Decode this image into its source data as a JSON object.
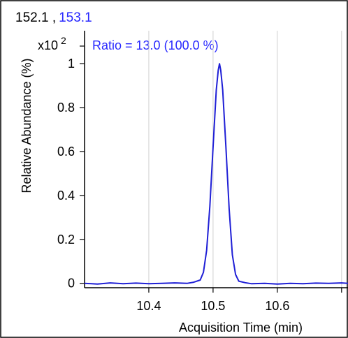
{
  "header": {
    "ion_primary": "152.1",
    "ion_separator": " ,",
    "ion_secondary": "153.1"
  },
  "annotation": {
    "ratio_text": "Ratio = 13.0 (100.0 %)"
  },
  "colors": {
    "trace": "#1f1fd6",
    "grid": "#cfcfcf",
    "axis": "#000000",
    "text": "#000000",
    "accent_text": "#2828ff"
  },
  "chart_data": {
    "type": "line",
    "title": "",
    "xlabel": "Acquisition Time (min)",
    "ylabel": "Relative Abundance (%)",
    "y_multiplier": "x10",
    "y_multiplier_exp": "2",
    "xlim": [
      10.3,
      10.71
    ],
    "ylim": [
      -0.02,
      1.15
    ],
    "x_ticks": [
      10.4,
      10.5,
      10.6,
      10.7
    ],
    "x_tick_labels": [
      "10.4",
      "10.5",
      "10.6",
      ""
    ],
    "y_ticks": [
      0,
      0.2,
      0.4,
      0.6,
      0.8,
      1
    ],
    "y_tick_labels": [
      "0",
      "0.2",
      "0.4",
      "0.6",
      "0.8",
      "1"
    ],
    "grid": true,
    "series": [
      {
        "name": "",
        "x": [
          10.3,
          10.32,
          10.34,
          10.36,
          10.38,
          10.4,
          10.42,
          10.44,
          10.46,
          10.47,
          10.48,
          10.485,
          10.49,
          10.495,
          10.5,
          10.505,
          10.508,
          10.51,
          10.512,
          10.515,
          10.52,
          10.525,
          10.53,
          10.535,
          10.54,
          10.55,
          10.56,
          10.58,
          10.6,
          10.62,
          10.64,
          10.66,
          10.68,
          10.7,
          10.71
        ],
        "y": [
          0.0,
          -0.003,
          0.002,
          -0.002,
          0.001,
          -0.002,
          0.0,
          0.002,
          0.0,
          0.005,
          0.015,
          0.05,
          0.15,
          0.35,
          0.62,
          0.88,
          0.97,
          1.0,
          0.97,
          0.88,
          0.62,
          0.34,
          0.13,
          0.04,
          0.01,
          0.003,
          -0.002,
          0.0,
          -0.003,
          0.0,
          -0.002,
          0.001,
          0.0,
          0.002,
          0.0
        ]
      }
    ]
  }
}
